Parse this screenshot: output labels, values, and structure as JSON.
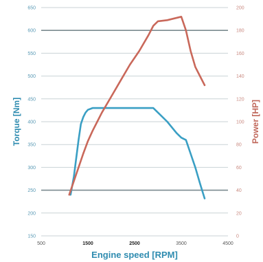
{
  "chart_data": {
    "type": "line",
    "xlabel": "Engine speed [RPM]",
    "ylabel_left": "Torque [Nm]",
    "ylabel_right": "Power [HP]",
    "xlim": [
      500,
      4500
    ],
    "ylim_left": [
      150,
      650
    ],
    "ylim_right": [
      0,
      200
    ],
    "x_ticks": [
      {
        "value": 500,
        "label": "500",
        "bold": false
      },
      {
        "value": 1500,
        "label": "1500",
        "bold": true
      },
      {
        "value": 2500,
        "label": "2500",
        "bold": true
      },
      {
        "value": 3500,
        "label": "3500",
        "bold": false
      },
      {
        "value": 4500,
        "label": "4500",
        "bold": false
      }
    ],
    "y_ticks_left": [
      "150",
      "200",
      "250",
      "300",
      "350",
      "400",
      "450",
      "500",
      "550",
      "600",
      "650"
    ],
    "y_ticks_right": [
      "0",
      "20",
      "40",
      "60",
      "80",
      "100",
      "120",
      "140",
      "160",
      "180",
      "200"
    ],
    "grid": "horizontal",
    "series": [
      {
        "axis": "left",
        "color": "#3a9fc4",
        "x": [
          1130,
          1200,
          1250,
          1300,
          1350,
          1400,
          1450,
          1500,
          1600,
          1700,
          1800,
          2000,
          2200,
          2500,
          2800,
          2900,
          3000,
          3200,
          3400,
          3500,
          3600,
          3700,
          3800,
          3900,
          4000
        ],
        "y": [
          240,
          280,
          320,
          360,
          395,
          410,
          420,
          426,
          430,
          430,
          430,
          430,
          430,
          430,
          430,
          430,
          420,
          400,
          375,
          365,
          360,
          330,
          300,
          265,
          232
        ]
      },
      {
        "axis": "right",
        "color": "#c9685a",
        "x": [
          1100,
          1200,
          1300,
          1400,
          1500,
          1600,
          1700,
          1800,
          2000,
          2200,
          2400,
          2600,
          2800,
          2900,
          3000,
          3200,
          3500,
          3600,
          3700,
          3800,
          3900,
          4000
        ],
        "y": [
          36,
          48,
          60,
          72,
          83,
          92,
          100,
          108,
          122,
          136,
          150,
          162,
          176,
          184,
          188,
          189,
          192,
          180,
          162,
          148,
          140,
          132
        ]
      }
    ]
  }
}
